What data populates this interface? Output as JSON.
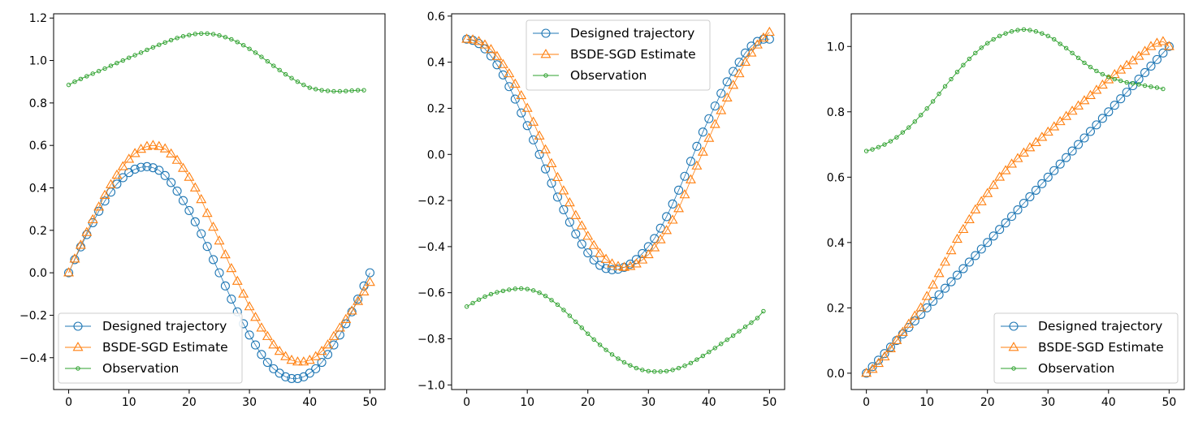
{
  "figure": {
    "legend_labels": [
      "Designed trajectory",
      "BSDE-SGD Estimate",
      "Observation"
    ],
    "colors": {
      "designed": "#1f77b4",
      "estimate": "#ff7f0e",
      "observation": "#2ca02c"
    }
  },
  "chart_data": [
    {
      "type": "line",
      "xlim": [
        -2.5,
        52.5
      ],
      "ylim": [
        -0.55,
        1.22
      ],
      "xticks": [
        0,
        10,
        20,
        30,
        40,
        50
      ],
      "yticks": [
        -0.4,
        -0.2,
        0.0,
        0.2,
        0.4,
        0.6,
        0.8,
        1.0,
        1.2
      ],
      "ytick_labels": [
        "−0.4",
        "−0.2",
        "0.0",
        "0.2",
        "0.4",
        "0.6",
        "0.8",
        "1.0",
        "1.2"
      ],
      "legend_position": "lower-left",
      "series": [
        {
          "name": "Designed trajectory",
          "marker": "circle",
          "x": [
            0,
            1,
            2,
            3,
            4,
            5,
            6,
            7,
            8,
            9,
            10,
            11,
            12,
            13,
            14,
            15,
            16,
            17,
            18,
            19,
            20,
            21,
            22,
            23,
            24,
            25,
            26,
            27,
            28,
            29,
            30,
            31,
            32,
            33,
            34,
            35,
            36,
            37,
            38,
            39,
            40,
            41,
            42,
            43,
            44,
            45,
            46,
            47,
            48,
            49,
            50
          ],
          "values": [
            0.0,
            0.062,
            0.122,
            0.18,
            0.236,
            0.29,
            0.338,
            0.38,
            0.418,
            0.448,
            0.472,
            0.488,
            0.497,
            0.5,
            0.495,
            0.483,
            0.458,
            0.425,
            0.385,
            0.34,
            0.293,
            0.24,
            0.184,
            0.124,
            0.062,
            0.0,
            -0.062,
            -0.124,
            -0.184,
            -0.24,
            -0.293,
            -0.34,
            -0.385,
            -0.422,
            -0.452,
            -0.473,
            -0.49,
            -0.498,
            -0.498,
            -0.49,
            -0.473,
            -0.452,
            -0.422,
            -0.385,
            -0.34,
            -0.293,
            -0.24,
            -0.184,
            -0.124,
            -0.062,
            0.0
          ]
        },
        {
          "name": "BSDE-SGD Estimate",
          "marker": "triangle",
          "x": [
            0,
            1,
            2,
            3,
            4,
            5,
            6,
            7,
            8,
            9,
            10,
            11,
            12,
            13,
            14,
            15,
            16,
            17,
            18,
            19,
            20,
            21,
            22,
            23,
            24,
            25,
            26,
            27,
            28,
            29,
            30,
            31,
            32,
            33,
            34,
            35,
            36,
            37,
            38,
            39,
            40,
            41,
            42,
            43,
            44,
            45,
            46,
            47,
            48,
            49,
            50
          ],
          "values": [
            0.0,
            0.065,
            0.13,
            0.19,
            0.25,
            0.31,
            0.365,
            0.415,
            0.46,
            0.5,
            0.535,
            0.562,
            0.582,
            0.595,
            0.6,
            0.595,
            0.584,
            0.56,
            0.53,
            0.492,
            0.45,
            0.4,
            0.345,
            0.28,
            0.215,
            0.15,
            0.085,
            0.02,
            -0.04,
            -0.1,
            -0.16,
            -0.21,
            -0.26,
            -0.3,
            -0.34,
            -0.37,
            -0.395,
            -0.412,
            -0.42,
            -0.42,
            -0.412,
            -0.395,
            -0.37,
            -0.34,
            -0.3,
            -0.26,
            -0.22,
            -0.18,
            -0.135,
            -0.09,
            -0.045
          ]
        },
        {
          "name": "Observation",
          "marker": "small-circle",
          "x": [
            0,
            1,
            2,
            3,
            4,
            5,
            6,
            7,
            8,
            9,
            10,
            11,
            12,
            13,
            14,
            15,
            16,
            17,
            18,
            19,
            20,
            21,
            22,
            23,
            24,
            25,
            26,
            27,
            28,
            29,
            30,
            31,
            32,
            33,
            34,
            35,
            36,
            37,
            38,
            39,
            40,
            41,
            42,
            43,
            44,
            45,
            46,
            47,
            48,
            49
          ],
          "values": [
            0.885,
            0.9,
            0.913,
            0.926,
            0.938,
            0.95,
            0.962,
            0.975,
            0.988,
            1.0,
            1.013,
            1.025,
            1.037,
            1.05,
            1.062,
            1.074,
            1.085,
            1.096,
            1.106,
            1.114,
            1.12,
            1.125,
            1.127,
            1.127,
            1.124,
            1.118,
            1.11,
            1.1,
            1.087,
            1.072,
            1.055,
            1.037,
            1.017,
            0.996,
            0.975,
            0.955,
            0.935,
            0.917,
            0.9,
            0.885,
            0.872,
            0.865,
            0.86,
            0.857,
            0.855,
            0.855,
            0.856,
            0.858,
            0.86,
            0.86
          ]
        }
      ]
    },
    {
      "type": "line",
      "xlim": [
        -2.5,
        52.5
      ],
      "ylim": [
        -1.02,
        0.61
      ],
      "xticks": [
        0,
        10,
        20,
        30,
        40,
        50
      ],
      "yticks": [
        -1.0,
        -0.8,
        -0.6,
        -0.4,
        -0.2,
        0.0,
        0.2,
        0.4,
        0.6
      ],
      "ytick_labels": [
        "−1.0",
        "−0.8",
        "−0.6",
        "−0.4",
        "−0.2",
        "0.0",
        "0.2",
        "0.4",
        "0.6"
      ],
      "legend_position": "upper-center",
      "series": [
        {
          "name": "Designed trajectory",
          "marker": "circle",
          "x": [
            0,
            1,
            2,
            3,
            4,
            5,
            6,
            7,
            8,
            9,
            10,
            11,
            12,
            13,
            14,
            15,
            16,
            17,
            18,
            19,
            20,
            21,
            22,
            23,
            24,
            25,
            26,
            27,
            28,
            29,
            30,
            31,
            32,
            33,
            34,
            35,
            36,
            37,
            38,
            39,
            40,
            41,
            42,
            43,
            44,
            45,
            46,
            47,
            48,
            49,
            50
          ],
          "values": [
            0.5,
            0.495,
            0.481,
            0.458,
            0.427,
            0.389,
            0.345,
            0.294,
            0.24,
            0.18,
            0.125,
            0.063,
            0.0,
            -0.063,
            -0.125,
            -0.185,
            -0.24,
            -0.294,
            -0.345,
            -0.389,
            -0.427,
            -0.458,
            -0.481,
            -0.495,
            -0.5,
            -0.498,
            -0.49,
            -0.476,
            -0.456,
            -0.43,
            -0.4,
            -0.365,
            -0.32,
            -0.27,
            -0.215,
            -0.155,
            -0.095,
            -0.03,
            0.035,
            0.097,
            0.155,
            0.21,
            0.265,
            0.315,
            0.36,
            0.4,
            0.44,
            0.47,
            0.49,
            0.5,
            0.5
          ]
        },
        {
          "name": "BSDE-SGD Estimate",
          "marker": "triangle",
          "x": [
            0,
            1,
            2,
            3,
            4,
            5,
            6,
            7,
            8,
            9,
            10,
            11,
            12,
            13,
            14,
            15,
            16,
            17,
            18,
            19,
            20,
            21,
            22,
            23,
            24,
            25,
            26,
            27,
            28,
            29,
            30,
            31,
            32,
            33,
            34,
            35,
            36,
            37,
            38,
            39,
            40,
            41,
            42,
            43,
            44,
            45,
            46,
            47,
            48,
            49,
            50
          ],
          "values": [
            0.5,
            0.497,
            0.49,
            0.475,
            0.455,
            0.425,
            0.39,
            0.35,
            0.305,
            0.255,
            0.2,
            0.14,
            0.08,
            0.02,
            -0.04,
            -0.1,
            -0.158,
            -0.21,
            -0.265,
            -0.31,
            -0.355,
            -0.395,
            -0.43,
            -0.455,
            -0.475,
            -0.486,
            -0.49,
            -0.486,
            -0.475,
            -0.458,
            -0.435,
            -0.405,
            -0.37,
            -0.33,
            -0.285,
            -0.235,
            -0.175,
            -0.11,
            -0.05,
            0.01,
            0.07,
            0.13,
            0.19,
            0.245,
            0.3,
            0.35,
            0.4,
            0.44,
            0.475,
            0.505,
            0.53
          ]
        },
        {
          "name": "Observation",
          "marker": "small-circle",
          "x": [
            0,
            1,
            2,
            3,
            4,
            5,
            6,
            7,
            8,
            9,
            10,
            11,
            12,
            13,
            14,
            15,
            16,
            17,
            18,
            19,
            20,
            21,
            22,
            23,
            24,
            25,
            26,
            27,
            28,
            29,
            30,
            31,
            32,
            33,
            34,
            35,
            36,
            37,
            38,
            39,
            40,
            41,
            42,
            43,
            44,
            45,
            46,
            47,
            48,
            49
          ],
          "values": [
            -0.66,
            -0.645,
            -0.63,
            -0.617,
            -0.606,
            -0.598,
            -0.592,
            -0.587,
            -0.583,
            -0.582,
            -0.584,
            -0.59,
            -0.6,
            -0.614,
            -0.632,
            -0.652,
            -0.675,
            -0.7,
            -0.726,
            -0.752,
            -0.778,
            -0.803,
            -0.826,
            -0.848,
            -0.868,
            -0.886,
            -0.902,
            -0.915,
            -0.927,
            -0.935,
            -0.94,
            -0.942,
            -0.942,
            -0.94,
            -0.935,
            -0.927,
            -0.917,
            -0.905,
            -0.89,
            -0.874,
            -0.857,
            -0.84,
            -0.822,
            -0.804,
            -0.786,
            -0.767,
            -0.748,
            -0.73,
            -0.71,
            -0.68
          ]
        }
      ]
    },
    {
      "type": "line",
      "xlim": [
        -2.5,
        52.5
      ],
      "ylim": [
        -0.05,
        1.1
      ],
      "xticks": [
        0,
        10,
        20,
        30,
        40,
        50
      ],
      "yticks": [
        0.0,
        0.2,
        0.4,
        0.6,
        0.8,
        1.0
      ],
      "ytick_labels": [
        "0.0",
        "0.2",
        "0.4",
        "0.6",
        "0.8",
        "1.0"
      ],
      "legend_position": "lower-right",
      "series": [
        {
          "name": "Designed trajectory",
          "marker": "circle",
          "x": [
            0,
            1,
            2,
            3,
            4,
            5,
            6,
            7,
            8,
            9,
            10,
            11,
            12,
            13,
            14,
            15,
            16,
            17,
            18,
            19,
            20,
            21,
            22,
            23,
            24,
            25,
            26,
            27,
            28,
            29,
            30,
            31,
            32,
            33,
            34,
            35,
            36,
            37,
            38,
            39,
            40,
            41,
            42,
            43,
            44,
            45,
            46,
            47,
            48,
            49,
            50
          ],
          "values": [
            0.0,
            0.02,
            0.04,
            0.06,
            0.08,
            0.1,
            0.12,
            0.14,
            0.16,
            0.18,
            0.2,
            0.22,
            0.24,
            0.26,
            0.28,
            0.3,
            0.32,
            0.34,
            0.36,
            0.38,
            0.4,
            0.42,
            0.44,
            0.46,
            0.48,
            0.5,
            0.52,
            0.54,
            0.56,
            0.58,
            0.6,
            0.62,
            0.64,
            0.66,
            0.68,
            0.7,
            0.72,
            0.74,
            0.76,
            0.78,
            0.8,
            0.82,
            0.84,
            0.86,
            0.88,
            0.9,
            0.92,
            0.94,
            0.96,
            0.98,
            1.0
          ]
        },
        {
          "name": "BSDE-SGD Estimate",
          "marker": "triangle",
          "x": [
            0,
            1,
            2,
            3,
            4,
            5,
            6,
            7,
            8,
            9,
            10,
            11,
            12,
            13,
            14,
            15,
            16,
            17,
            18,
            19,
            20,
            21,
            22,
            23,
            24,
            25,
            26,
            27,
            28,
            29,
            30,
            31,
            32,
            33,
            34,
            35,
            36,
            37,
            38,
            39,
            40,
            41,
            42,
            43,
            44,
            45,
            46,
            47,
            48,
            49,
            50
          ],
          "values": [
            0.0,
            0.012,
            0.03,
            0.05,
            0.075,
            0.1,
            0.125,
            0.15,
            0.175,
            0.2,
            0.235,
            0.27,
            0.305,
            0.34,
            0.375,
            0.41,
            0.44,
            0.47,
            0.5,
            0.525,
            0.55,
            0.575,
            0.6,
            0.62,
            0.64,
            0.657,
            0.674,
            0.69,
            0.706,
            0.722,
            0.738,
            0.754,
            0.77,
            0.786,
            0.802,
            0.818,
            0.834,
            0.85,
            0.866,
            0.882,
            0.898,
            0.914,
            0.928,
            0.942,
            0.956,
            0.97,
            0.985,
            1.0,
            1.01,
            1.015,
            1.0
          ]
        },
        {
          "name": "Observation",
          "marker": "small-circle",
          "x": [
            0,
            1,
            2,
            3,
            4,
            5,
            6,
            7,
            8,
            9,
            10,
            11,
            12,
            13,
            14,
            15,
            16,
            17,
            18,
            19,
            20,
            21,
            22,
            23,
            24,
            25,
            26,
            27,
            28,
            29,
            30,
            31,
            32,
            33,
            34,
            35,
            36,
            37,
            38,
            39,
            40,
            41,
            42,
            43,
            44,
            45,
            46,
            47,
            48,
            49
          ],
          "values": [
            0.68,
            0.685,
            0.692,
            0.7,
            0.71,
            0.722,
            0.737,
            0.752,
            0.77,
            0.79,
            0.81,
            0.832,
            0.855,
            0.878,
            0.9,
            0.922,
            0.943,
            0.962,
            0.98,
            0.996,
            1.01,
            1.022,
            1.032,
            1.04,
            1.046,
            1.05,
            1.052,
            1.05,
            1.046,
            1.04,
            1.032,
            1.022,
            1.008,
            0.995,
            0.98,
            0.965,
            0.95,
            0.937,
            0.925,
            0.915,
            0.907,
            0.9,
            0.895,
            0.89,
            0.887,
            0.884,
            0.88,
            0.877,
            0.874,
            0.87
          ]
        }
      ]
    }
  ]
}
